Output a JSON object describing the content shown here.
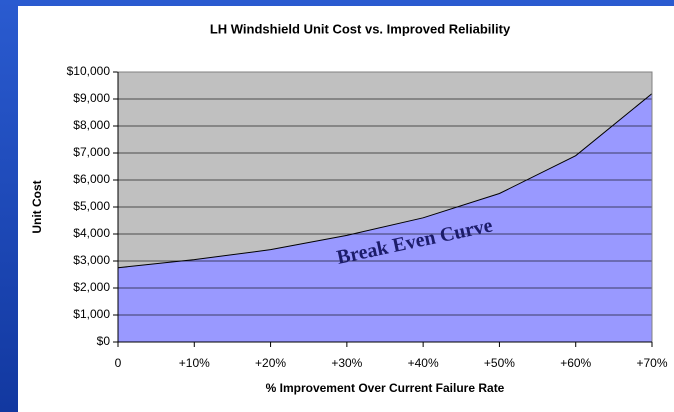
{
  "chart_data": {
    "type": "area",
    "title": "LH Windshield Unit Cost vs. Improved Reliability",
    "x_label": "% Improvement Over Current Failure Rate",
    "y_label": "Unit Cost",
    "annotation": "Break Even Curve",
    "categories": [
      "0",
      "+10%",
      "+20%",
      "+30%",
      "+40%",
      "+50%",
      "+60%",
      "+70%"
    ],
    "values": [
      2750,
      3050,
      3420,
      3950,
      4600,
      5500,
      6900,
      9200
    ],
    "color": "#9999ff",
    "ylim": [
      0,
      10000
    ],
    "yticks": [
      {
        "value": 0,
        "label": "$0"
      },
      {
        "value": 1000,
        "label": "$1,000"
      },
      {
        "value": 2000,
        "label": "$2,000"
      },
      {
        "value": 3000,
        "label": "$3,000"
      },
      {
        "value": 4000,
        "label": "$4,000"
      },
      {
        "value": 5000,
        "label": "$5,000"
      },
      {
        "value": 6000,
        "label": "$6,000"
      },
      {
        "value": 7000,
        "label": "$7,000"
      },
      {
        "value": 8000,
        "label": "$8,000"
      },
      {
        "value": 9000,
        "label": "$9,000"
      },
      {
        "value": 10000,
        "label": "$10,000"
      }
    ],
    "grid": true
  }
}
